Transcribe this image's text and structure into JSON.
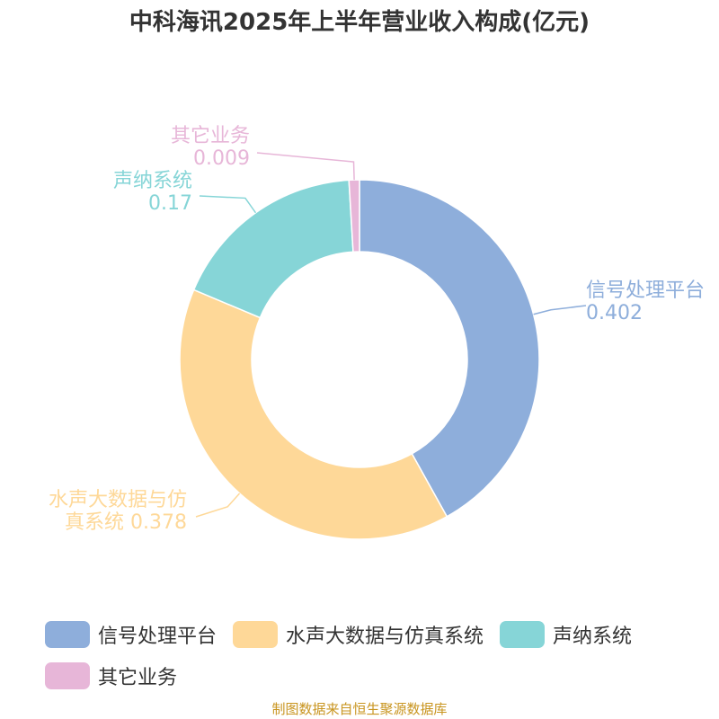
{
  "chart_data": {
    "type": "pie",
    "title": "中科海讯2025年上半年营业收入构成(亿元)",
    "series": [
      {
        "name": "信号处理平台",
        "label_lines": [
          "信号处理平台",
          "0.402"
        ],
        "value": 0.402,
        "color": "#8eaedb"
      },
      {
        "name": "水声大数据与仿真系统",
        "label_lines": [
          "水声大数据与仿",
          "真系统 0.378"
        ],
        "value": 0.378,
        "color": "#fed898"
      },
      {
        "name": "声纳系统",
        "label_lines": [
          "声纳系统",
          "0.17"
        ],
        "value": 0.17,
        "color": "#86d5d7"
      },
      {
        "name": "其它业务",
        "label_lines": [
          "其它业务",
          "0.009"
        ],
        "value": 0.009,
        "color": "#e7b6d8"
      }
    ]
  },
  "source_note": "制图数据来自恒生聚源数据库"
}
